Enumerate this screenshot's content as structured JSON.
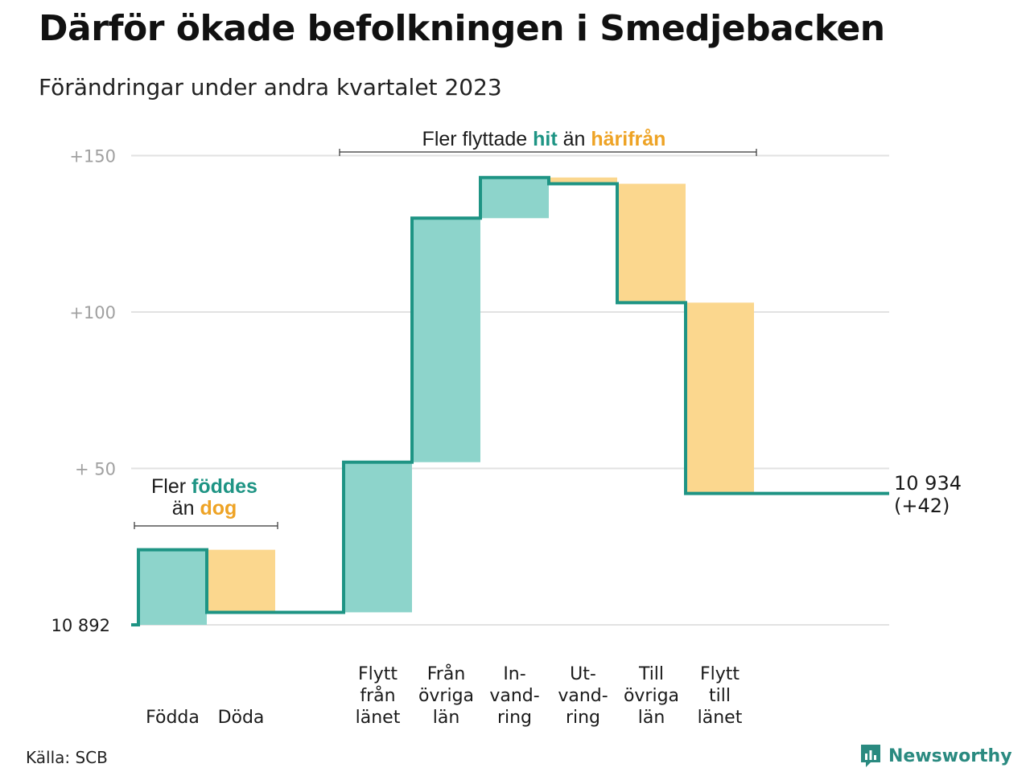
{
  "title": "Därför ökade befolkningen i Smedjebacken",
  "subtitle": "Förändringar under andra kvartalet 2023",
  "source": "Källa: SCB",
  "brand": {
    "name": "Newsworthy",
    "icon": "newsworthy-logo-icon"
  },
  "colors": {
    "increase_fill": "#8dd4cb",
    "decrease_fill": "#fbd78e",
    "line": "#1e9484",
    "teal_text": "#1e9484",
    "orange_text": "#eea325",
    "grid": "#e2e2e2"
  },
  "annotations": {
    "births": {
      "line1_a": "Fler ",
      "line1_b": "föddes",
      "line2_a": "än ",
      "line2_b": "dog"
    },
    "migration": {
      "a": "Fler flyttade ",
      "b": "hit",
      "c": " än ",
      "d": "härifrån"
    }
  },
  "end_label": {
    "value": "10 934",
    "change": "(+42)"
  },
  "chart_data": {
    "type": "waterfall",
    "base": 10892,
    "base_label": "10  892",
    "y_ticks": [
      {
        "value": 50,
        "label": "+  50"
      },
      {
        "value": 100,
        "label": "+100"
      },
      {
        "value": 150,
        "label": "+150"
      }
    ],
    "ylim": [
      0,
      150
    ],
    "grid": true,
    "categories": [
      {
        "label": [
          "Födda"
        ],
        "value": 24,
        "kind": "increase"
      },
      {
        "label": [
          "Döda"
        ],
        "value": -20,
        "kind": "decrease"
      },
      {
        "label": [],
        "value": 0,
        "kind": "gap"
      },
      {
        "label": [
          "Flytt",
          "från",
          "länet"
        ],
        "value": 48,
        "kind": "increase"
      },
      {
        "label": [
          "Från",
          "övriga",
          "län"
        ],
        "value": 78,
        "kind": "increase"
      },
      {
        "label": [
          "In-",
          "vand-",
          "ring"
        ],
        "value": 13,
        "kind": "increase"
      },
      {
        "label": [
          "Ut-",
          "vand-",
          "ring"
        ],
        "value": -2,
        "kind": "decrease"
      },
      {
        "label": [
          "Till",
          "övriga",
          "län"
        ],
        "value": -38,
        "kind": "decrease"
      },
      {
        "label": [
          "Flytt",
          "till",
          "länet"
        ],
        "value": -61,
        "kind": "decrease"
      }
    ],
    "total": 42
  }
}
